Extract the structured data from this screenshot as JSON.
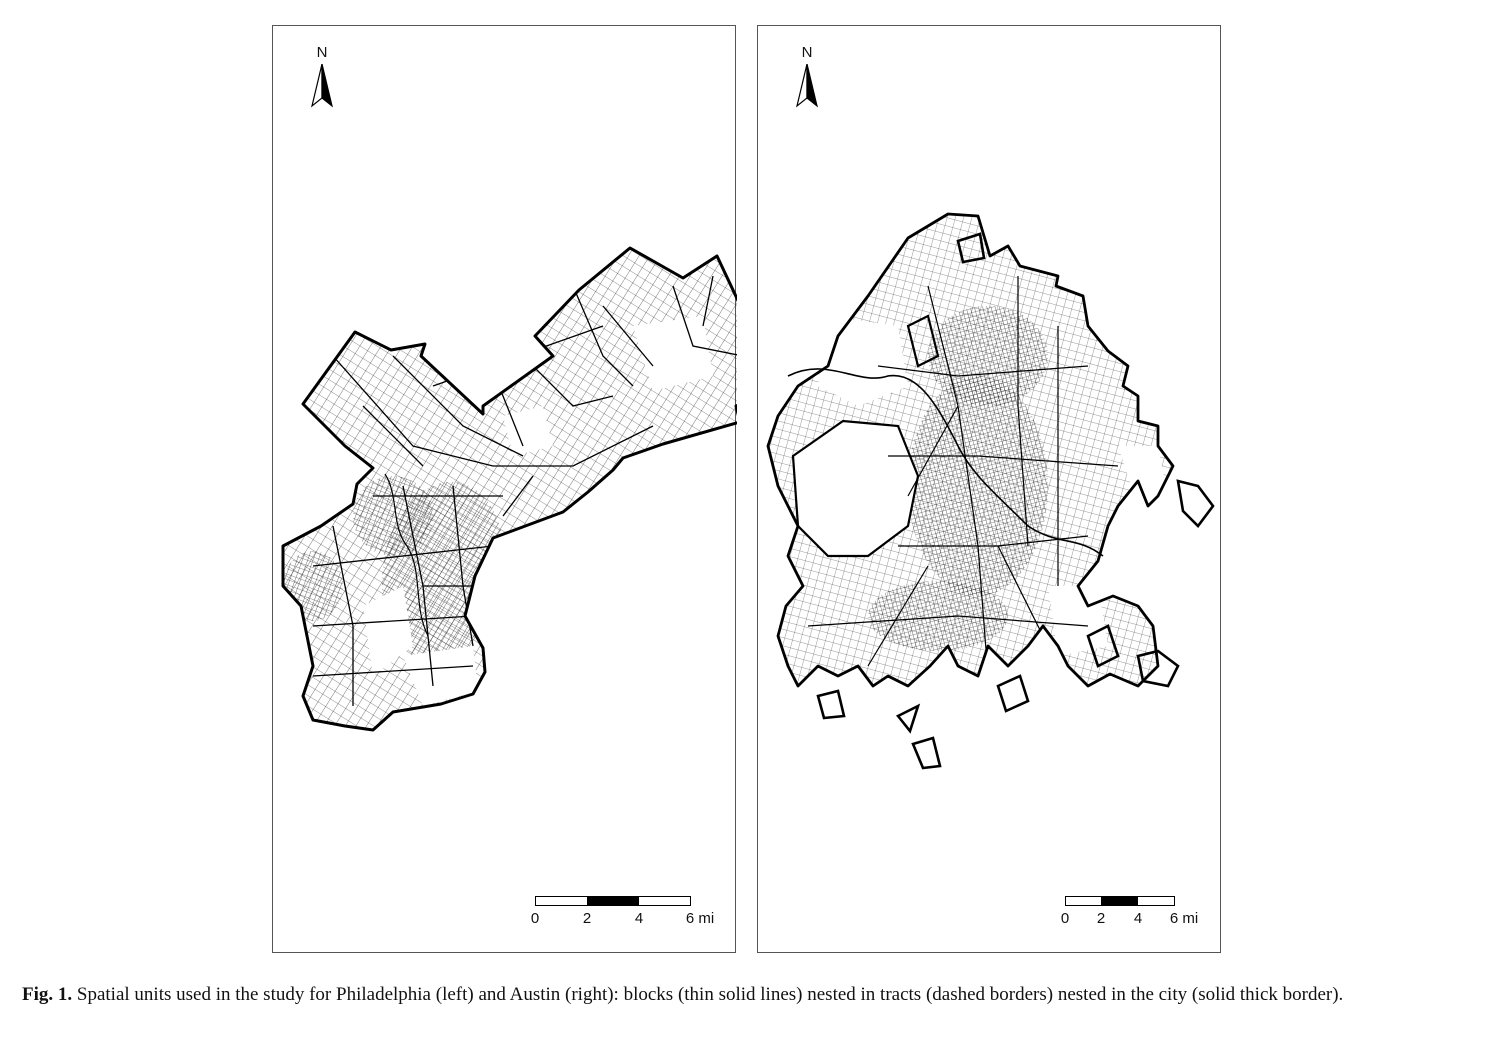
{
  "panels": [
    {
      "city": "Philadelphia",
      "north_label": "N",
      "north_icon": "north-arrow-icon",
      "scale_ticks": [
        "0",
        "2",
        "4",
        "6 mi"
      ]
    },
    {
      "city": "Austin",
      "north_label": "N",
      "north_icon": "north-arrow-icon",
      "scale_ticks": [
        "0",
        "2",
        "4",
        "6 mi"
      ]
    }
  ],
  "caption": {
    "label": "Fig. 1.",
    "text": "Spatial units used in the study for Philadelphia (left) and Austin (right): blocks (thin solid lines) nested in tracts (dashed borders) nested in the city (solid thick border)."
  },
  "colors": {
    "line": "#000000",
    "frame": "#555555",
    "background": "#ffffff"
  }
}
